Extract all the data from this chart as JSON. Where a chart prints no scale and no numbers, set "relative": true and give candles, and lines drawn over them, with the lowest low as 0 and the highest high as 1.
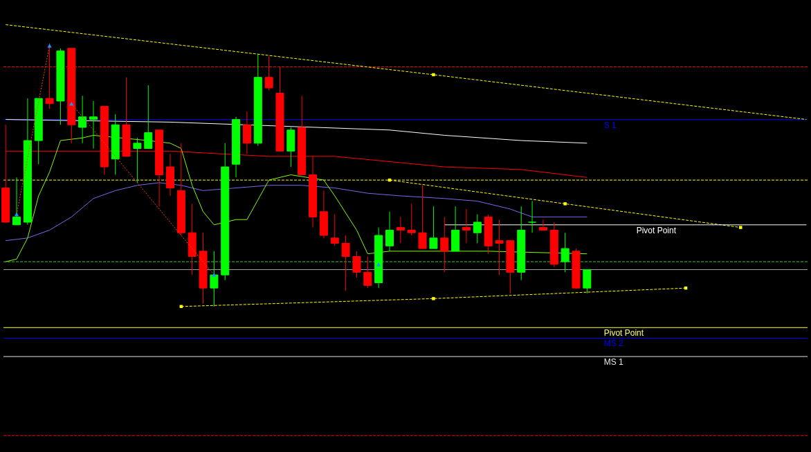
{
  "chart_data": {
    "type": "candlestick",
    "relative": true,
    "tick_labels": false,
    "categories": [
      null,
      null,
      null,
      null,
      null,
      null,
      null,
      null,
      null,
      null,
      null,
      null,
      null,
      null,
      null,
      null,
      null,
      null,
      null,
      null,
      null,
      null,
      null,
      null,
      null,
      null,
      null,
      null,
      null,
      null,
      null,
      null,
      null,
      null,
      null,
      null,
      null,
      null,
      null,
      null,
      null,
      null,
      null,
      null,
      null,
      null,
      null,
      null,
      null,
      null,
      null,
      null,
      null,
      null,
      null,
      null,
      null,
      null,
      null,
      null,
      null,
      null,
      null,
      null,
      null,
      null,
      null,
      null,
      null,
      null,
      null,
      null,
      null,
      null
    ],
    "ohlc": [
      [
        0.45,
        0.69,
        0.32,
        0.32
      ],
      [
        0.31,
        0.49,
        0.31,
        0.34
      ],
      [
        0.32,
        0.79,
        0.31,
        0.63
      ],
      [
        0.63,
        0.79,
        0.54,
        0.79
      ],
      [
        0.79,
        1.0,
        0.75,
        0.77
      ],
      [
        0.78,
        0.98,
        0.69,
        0.97
      ],
      [
        0.98,
        0.98,
        0.62,
        0.69
      ],
      [
        0.68,
        0.8,
        0.62,
        0.72
      ],
      [
        0.71,
        0.78,
        0.6,
        0.72
      ],
      [
        0.76,
        0.76,
        0.5,
        0.53
      ],
      [
        0.56,
        0.73,
        0.5,
        0.69
      ],
      [
        0.69,
        0.87,
        0.57,
        0.57
      ],
      [
        0.6,
        0.64,
        0.47,
        0.62
      ],
      [
        0.6,
        0.84,
        0.6,
        0.66
      ],
      [
        0.67,
        0.67,
        0.38,
        0.5
      ],
      [
        0.53,
        0.58,
        0.42,
        0.45
      ],
      [
        0.44,
        0.62,
        0.27,
        0.28
      ],
      [
        0.28,
        0.39,
        0.12,
        0.19
      ],
      [
        0.21,
        0.28,
        0.01,
        0.07
      ],
      [
        0.07,
        0.21,
        0.0,
        0.12
      ],
      [
        0.12,
        0.62,
        0.1,
        0.53
      ],
      [
        0.54,
        0.72,
        0.49,
        0.71
      ],
      [
        0.69,
        0.74,
        0.58,
        0.62
      ],
      [
        0.62,
        0.96,
        0.61,
        0.87
      ],
      [
        0.87,
        0.95,
        0.82,
        0.83
      ],
      [
        0.81,
        0.91,
        0.59,
        0.59
      ],
      [
        0.59,
        0.68,
        0.53,
        0.67
      ],
      [
        0.68,
        0.8,
        0.5,
        0.5
      ],
      [
        0.5,
        0.57,
        0.3,
        0.34
      ],
      [
        0.36,
        0.44,
        0.26,
        0.27
      ],
      [
        0.26,
        0.35,
        0.23,
        0.24
      ],
      [
        0.24,
        0.27,
        0.06,
        0.19
      ],
      [
        0.19,
        0.21,
        0.11,
        0.13
      ],
      [
        0.13,
        0.19,
        0.07,
        0.08
      ],
      [
        0.09,
        0.3,
        0.07,
        0.27
      ],
      [
        0.23,
        0.36,
        0.21,
        0.29
      ],
      [
        0.3,
        0.34,
        0.24,
        0.29
      ],
      [
        0.29,
        0.39,
        0.27,
        0.28
      ],
      [
        0.28,
        0.46,
        0.22,
        0.22
      ],
      [
        0.22,
        0.38,
        0.22,
        0.26
      ],
      [
        0.26,
        0.34,
        0.13,
        0.21
      ],
      [
        0.21,
        0.38,
        0.21,
        0.29
      ],
      [
        0.3,
        0.37,
        0.24,
        0.29
      ],
      [
        0.28,
        0.35,
        0.24,
        0.32
      ],
      [
        0.34,
        0.35,
        0.2,
        0.23
      ],
      [
        0.25,
        0.33,
        0.12,
        0.24
      ],
      [
        0.25,
        0.25,
        0.05,
        0.13
      ],
      [
        0.13,
        0.38,
        0.1,
        0.29
      ],
      [
        0.32,
        0.4,
        0.28,
        0.32
      ],
      [
        0.3,
        0.33,
        0.29,
        0.29
      ],
      [
        0.29,
        0.32,
        0.15,
        0.16
      ],
      [
        0.17,
        0.28,
        0.13,
        0.22
      ],
      [
        0.21,
        0.22,
        0.07,
        0.07
      ],
      [
        0.07,
        0.14,
        0.05,
        0.14
      ],
      null,
      null,
      null,
      null,
      null,
      null,
      null,
      null,
      null,
      null,
      null,
      null,
      null,
      null,
      null,
      null,
      null,
      null,
      null,
      null
    ],
    "colors": [
      "#ff0000",
      "#00ff00",
      "#00ff00",
      "#00ff00",
      "#ff0000",
      "#00ff00",
      "#ff0000",
      "#00ff00",
      "#00ff00",
      "#ff0000",
      "#00ff00",
      "#ff0000",
      "#00ff00",
      "#00ff00",
      "#ff0000",
      "#ff0000",
      "#ff0000",
      "#ff0000",
      "#ff0000",
      "#00ff00",
      "#00ff00",
      "#00ff00",
      "#ff0000",
      "#00ff00",
      "#ff0000",
      "#ff0000",
      "#00ff00",
      "#ff0000",
      "#ff0000",
      "#ff0000",
      "#ff0000",
      "#ff0000",
      "#ff0000",
      "#ff0000",
      "#00ff00",
      "#00ff00",
      "#ff0000",
      "#ff0000",
      "#ff0000",
      "#00ff00",
      "#ff0000",
      "#00ff00",
      "#ff0000",
      "#00ff00",
      "#ff0000",
      "#ff0000",
      "#ff0000",
      "#00ff00",
      "#00ff00",
      "#ff0000",
      "#ff0000",
      "#00ff00",
      "#ff0000",
      "#00ff00",
      null,
      null,
      null,
      null,
      null,
      null,
      null,
      null,
      null,
      null,
      null,
      null,
      null,
      null,
      null,
      null,
      null,
      null,
      null,
      null
    ],
    "series": [
      {
        "type": "line",
        "color": "#ffffff",
        "values": [
          0.71,
          null,
          null,
          null,
          null,
          null,
          null,
          null,
          null,
          null,
          null,
          null,
          null,
          null,
          null,
          0.7,
          null,
          null,
          null,
          null,
          null,
          null,
          null,
          null,
          null,
          null,
          null,
          null,
          null,
          null,
          null,
          null,
          null,
          null,
          null,
          0.67,
          null,
          null,
          null,
          null,
          0.65,
          null,
          null,
          null,
          null,
          null,
          null,
          0.63,
          null,
          null,
          null,
          null,
          null,
          0.62,
          null,
          null,
          null,
          null,
          null,
          null,
          null,
          null,
          null,
          null,
          null,
          null,
          null,
          null,
          null,
          null,
          null,
          null,
          null,
          null
        ]
      },
      {
        "type": "line",
        "color": "#ff0000",
        "values": [
          0.59,
          null,
          null,
          null,
          null,
          null,
          null,
          null,
          null,
          null,
          null,
          null,
          null,
          null,
          null,
          0.59,
          null,
          null,
          null,
          null,
          null,
          null,
          null,
          null,
          0.57,
          null,
          null,
          null,
          null,
          null,
          0.57,
          null,
          null,
          null,
          null,
          null,
          null,
          null,
          null,
          null,
          0.53,
          null,
          null,
          null,
          null,
          null,
          null,
          0.52,
          null,
          null,
          null,
          null,
          null,
          0.49,
          null,
          null,
          null,
          null,
          null,
          null,
          null,
          null,
          null,
          null,
          null,
          null,
          null,
          null,
          null,
          null,
          null,
          null,
          null,
          null
        ]
      },
      {
        "type": "line",
        "color": "#7b68ee",
        "values": [
          0.25,
          null,
          0.26,
          null,
          0.29,
          null,
          0.34,
          null,
          0.41,
          null,
          0.44,
          null,
          0.46,
          null,
          0.47,
          null,
          0.46,
          null,
          0.44,
          null,
          null,
          null,
          null,
          null,
          0.46,
          null,
          null,
          0.46,
          null,
          null,
          0.45,
          null,
          null,
          0.43,
          null,
          null,
          0.42,
          null,
          null,
          null,
          0.41,
          null,
          null,
          0.4,
          null,
          null,
          0.37,
          null,
          0.34,
          null,
          null,
          null,
          null,
          0.34,
          null,
          null,
          null,
          null,
          null,
          null,
          null,
          null,
          null,
          null,
          null,
          null,
          null,
          null,
          null,
          null,
          null,
          null,
          null,
          null
        ]
      },
      {
        "type": "line",
        "color": "#7fff00",
        "values": [
          0.17,
          0.18,
          0.26,
          0.42,
          0.51,
          0.63,
          null,
          0.64,
          0.65,
          null,
          null,
          null,
          null,
          0.63,
          null,
          0.62,
          0.6,
          0.46,
          0.36,
          0.31,
          null,
          0.33,
          0.33,
          null,
          0.48,
          null,
          0.5,
          null,
          null,
          0.48,
          0.42,
          null,
          0.29,
          0.2,
          null,
          0.21,
          null,
          null,
          null,
          null,
          null,
          null,
          null,
          null,
          0.21,
          null,
          null,
          null,
          null,
          null,
          null,
          null,
          null,
          0.2,
          null,
          null,
          null,
          null,
          null,
          null,
          null,
          null,
          null,
          null,
          null,
          null,
          null,
          null,
          null,
          null,
          null,
          null,
          null,
          null
        ]
      },
      {
        "type": "line",
        "color": "#ffff00",
        "line_style": "dashed",
        "values": [
          1.07,
          null,
          null,
          null,
          null,
          null,
          null,
          null,
          null,
          null,
          null,
          null,
          null,
          null,
          null,
          null,
          null,
          null,
          null,
          null,
          null,
          null,
          null,
          null,
          null,
          null,
          null,
          null,
          null,
          null,
          null,
          null,
          null,
          null,
          null,
          null,
          null,
          null,
          null,
          0.88,
          null,
          null,
          null,
          null,
          null,
          null,
          null,
          null,
          null,
          null,
          null,
          null,
          null,
          null,
          null,
          null,
          null,
          null,
          null,
          null,
          null,
          null,
          null,
          null,
          null,
          null,
          null,
          null,
          null,
          null,
          null,
          null,
          null,
          0.71
        ]
      },
      {
        "type": "scatter",
        "color": "#ffff00",
        "marker": "square",
        "values": [
          null,
          null,
          null,
          null,
          null,
          null,
          null,
          null,
          null,
          null,
          null,
          null,
          null,
          null,
          null,
          null,
          null,
          null,
          null,
          null,
          null,
          null,
          null,
          null,
          null,
          null,
          null,
          null,
          null,
          null,
          null,
          null,
          null,
          null,
          null,
          null,
          null,
          null,
          null,
          0.88,
          null,
          null,
          null,
          null,
          null,
          null,
          null,
          null,
          null,
          null,
          null,
          null,
          null,
          null,
          null,
          null,
          null,
          null,
          null,
          null,
          null,
          null,
          null,
          null,
          null,
          null,
          null,
          null,
          null,
          null,
          null,
          null,
          null,
          null
        ]
      },
      {
        "type": "line",
        "color": "#ffff00",
        "line_style": "dashed",
        "marker": "square",
        "values": [
          null,
          null,
          null,
          null,
          null,
          null,
          null,
          null,
          null,
          null,
          null,
          null,
          null,
          null,
          null,
          null,
          null,
          null,
          null,
          null,
          null,
          null,
          null,
          null,
          null,
          null,
          null,
          null,
          null,
          null,
          null,
          null,
          null,
          null,
          null,
          0.48,
          null,
          null,
          null,
          null,
          null,
          null,
          null,
          null,
          null,
          null,
          null,
          null,
          null,
          null,
          null,
          0.39,
          null,
          null,
          null,
          null,
          null,
          null,
          null,
          null,
          null,
          null,
          null,
          null,
          null,
          null,
          null,
          0.3,
          null,
          null,
          null,
          null,
          null,
          null
        ]
      },
      {
        "type": "line",
        "color": "#ffff00",
        "line_style": "dashed",
        "marker": "square",
        "values": [
          null,
          null,
          null,
          null,
          null,
          null,
          null,
          null,
          null,
          null,
          null,
          null,
          null,
          null,
          null,
          null,
          0.0,
          null,
          null,
          null,
          null,
          null,
          null,
          null,
          null,
          null,
          null,
          null,
          null,
          null,
          null,
          null,
          null,
          null,
          null,
          null,
          null,
          null,
          null,
          0.03,
          null,
          null,
          null,
          null,
          null,
          null,
          null,
          null,
          null,
          null,
          null,
          null,
          null,
          null,
          null,
          null,
          null,
          null,
          null,
          null,
          null,
          null,
          0.07,
          null,
          null,
          null,
          null,
          null,
          null,
          null,
          null,
          null,
          null,
          null
        ]
      },
      {
        "type": "line",
        "color": "#ff4500",
        "line_style": "dotted",
        "values": [
          null,
          0.35,
          null,
          null,
          0.99,
          null,
          null,
          null,
          null,
          null,
          null,
          null,
          null,
          null,
          null,
          null,
          null,
          null,
          null,
          null,
          null,
          null,
          null,
          null,
          null,
          null,
          null,
          null,
          null,
          null,
          null,
          null,
          null,
          null,
          null,
          null,
          null,
          null,
          null,
          null,
          null,
          null,
          null,
          null,
          null,
          null,
          null,
          null,
          null,
          null,
          null,
          null,
          null,
          null,
          null,
          null,
          null,
          null,
          null,
          null,
          null,
          null,
          null,
          null,
          null,
          null,
          null,
          null,
          null,
          null,
          null,
          null,
          null,
          null
        ]
      },
      {
        "type": "line",
        "color": "#ff4500",
        "line_style": "dotted",
        "values": [
          null,
          null,
          null,
          null,
          null,
          null,
          0.77,
          null,
          null,
          null,
          null,
          null,
          null,
          null,
          null,
          null,
          null,
          null,
          null,
          0.12,
          null,
          null,
          null,
          null,
          null,
          null,
          null,
          null,
          null,
          null,
          null,
          null,
          null,
          null,
          null,
          null,
          null,
          null,
          null,
          null,
          null,
          null,
          null,
          null,
          null,
          null,
          null,
          null,
          null,
          null,
          null,
          null,
          null,
          null,
          null,
          null,
          null,
          null,
          null,
          null,
          null,
          null,
          null,
          null,
          null,
          null,
          null,
          null,
          null,
          null,
          null,
          null,
          null,
          null
        ]
      },
      {
        "type": "scatter",
        "color": "#1e90ff",
        "marker": "triangle",
        "values": [
          null,
          0.35,
          null,
          null,
          0.99,
          null,
          0.77,
          null,
          null,
          null,
          null,
          null,
          null,
          null,
          null,
          null,
          null,
          null,
          null,
          0.12,
          null,
          null,
          null,
          null,
          null,
          null,
          null,
          null,
          null,
          null,
          null,
          null,
          null,
          null,
          0.16,
          null,
          null,
          null,
          null,
          null,
          null,
          null,
          null,
          null,
          null,
          null,
          null,
          null,
          null,
          null,
          null,
          null,
          null,
          null,
          null,
          null,
          null,
          null,
          null,
          null,
          null,
          null,
          null,
          null,
          null,
          null,
          null,
          null,
          null,
          null,
          null,
          null,
          null,
          null
        ]
      },
      {
        "type": "line",
        "name": "Pivot Point",
        "color": "#ffffff",
        "values": [
          null,
          null,
          null,
          null,
          null,
          null,
          null,
          null,
          null,
          null,
          null,
          null,
          null,
          null,
          null,
          null,
          null,
          null,
          null,
          null,
          null,
          null,
          null,
          null,
          null,
          null,
          null,
          null,
          null,
          null,
          null,
          null,
          null,
          null,
          null,
          null,
          null,
          null,
          null,
          null,
          0.31,
          null,
          null,
          null,
          null,
          null,
          null,
          null,
          null,
          null,
          null,
          null,
          null,
          null,
          null,
          null,
          null,
          null,
          null,
          null,
          null,
          null,
          null,
          null,
          null,
          null,
          null,
          null,
          null,
          null,
          null,
          null,
          null,
          0.31
        ]
      }
    ],
    "ref_lines": [
      {
        "axis": "y",
        "value": 0.91,
        "color": "#ff0000",
        "line_style": "dashed"
      },
      {
        "axis": "y",
        "value": 0.71,
        "label": "S 1",
        "color": "#0000ff"
      },
      {
        "axis": "y",
        "value": 0.48,
        "color": "#ffff00",
        "line_style": "dashed"
      },
      {
        "axis": "y",
        "value": 0.17,
        "color": "#32cd32",
        "line_style": "dashed"
      },
      {
        "axis": "y",
        "value": 0.14,
        "color": "#a0a0a0"
      },
      {
        "axis": "y",
        "value": -0.08,
        "label": "Pivot Point",
        "color": "#ffff66"
      },
      {
        "axis": "y",
        "value": -0.12,
        "label": "MS 2",
        "color": "#0000ff"
      },
      {
        "axis": "y",
        "value": -0.19,
        "label": "MS 1",
        "color": "#e6e6e6"
      },
      {
        "axis": "y",
        "value": -0.49,
        "color": "#ff0000",
        "line_style": "dashed"
      }
    ]
  }
}
